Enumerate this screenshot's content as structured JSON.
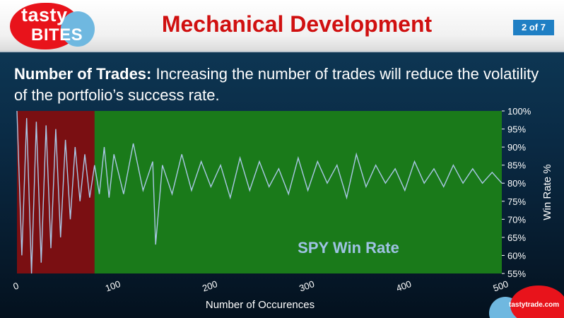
{
  "brand": {
    "logo_line1": "tasty",
    "logo_line2": "BITES",
    "footer_logo": "tastytrade.com"
  },
  "header": {
    "title": "Mechanical Development",
    "page_badge": "2 of 7"
  },
  "subtitle": {
    "bold": "Number of Trades:",
    "text": " Increasing the number of trades will reduce the volatility of the portfolio’s success rate."
  },
  "colors": {
    "plot_bg": "#1a7a1a",
    "early_region": "#7a0f12",
    "line": "#aac8e6",
    "annotation": "#9fc3e4"
  },
  "chart_data": {
    "type": "line",
    "xlabel": "Number of Occurences",
    "ylabel": "Win Rate %",
    "xlim": [
      0,
      500
    ],
    "ylim": [
      55,
      100
    ],
    "x_ticks": [
      "0",
      "100",
      "200",
      "300",
      "400",
      "500"
    ],
    "y_ticks": [
      "100%",
      "95%",
      "90%",
      "85%",
      "80%",
      "75%",
      "70%",
      "65%",
      "60%",
      "55%"
    ],
    "annotation": "SPY Win Rate",
    "highlighted_x_range": [
      0,
      80
    ],
    "grid": false,
    "series": [
      {
        "x": [
          0,
          5,
          10,
          15,
          20,
          25,
          30,
          35,
          40,
          45,
          50,
          55,
          60,
          65,
          70,
          75,
          80,
          85,
          90,
          95,
          100,
          110,
          120,
          130,
          140,
          143,
          150,
          160,
          170,
          180,
          190,
          200,
          210,
          220,
          230,
          240,
          250,
          260,
          270,
          280,
          290,
          300,
          310,
          320,
          330,
          340,
          350,
          360,
          370,
          380,
          390,
          400,
          410,
          420,
          430,
          440,
          450,
          460,
          470,
          480,
          490,
          500
        ],
        "y": [
          100,
          60,
          98,
          55,
          97,
          58,
          96,
          62,
          95,
          65,
          92,
          70,
          90,
          75,
          88,
          76,
          85,
          77,
          90,
          76,
          88,
          77,
          91,
          78,
          86,
          63,
          85,
          77,
          88,
          78,
          86,
          79,
          85,
          76,
          87,
          78,
          86,
          79,
          84,
          77,
          87,
          78,
          86,
          80,
          85,
          76,
          88,
          79,
          85,
          80,
          84,
          78,
          86,
          80,
          84,
          79,
          85,
          80,
          84,
          80,
          83,
          80
        ]
      }
    ]
  }
}
